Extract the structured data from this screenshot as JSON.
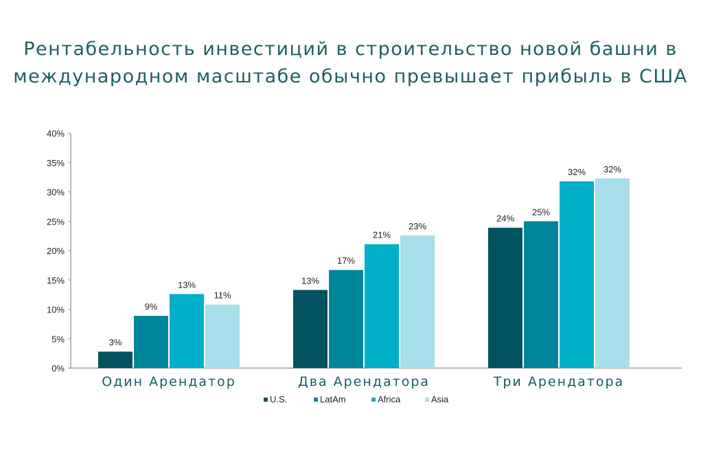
{
  "chart_data": {
    "type": "bar",
    "title": "Рентабельность инвестиций в строительство новой башни в международном масштабе обычно превышает прибыль в США",
    "title_lines": [
      "Рентабельность инвестиций в строительство новой башни в",
      "международном масштабе обычно превышает прибыль в США"
    ],
    "categories": [
      "Один Арендатор",
      "Два Арендатора",
      "Три Арендатора"
    ],
    "series": [
      {
        "name": "U.S.",
        "color": "#02535f",
        "values": [
          2.8,
          13.3,
          23.9
        ],
        "labels": [
          "3%",
          "13%",
          "24%"
        ]
      },
      {
        "name": "LatAm",
        "color": "#00869c",
        "values": [
          8.9,
          16.7,
          25.0
        ],
        "labels": [
          "9%",
          "17%",
          "25%"
        ]
      },
      {
        "name": "Africa",
        "color": "#00afc8",
        "values": [
          12.6,
          21.1,
          31.8
        ],
        "labels": [
          "13%",
          "21%",
          "32%"
        ]
      },
      {
        "name": "Asia",
        "color": "#a6dfe9",
        "values": [
          10.8,
          22.6,
          32.3
        ],
        "labels": [
          "11%",
          "23%",
          "32%"
        ]
      }
    ],
    "ylim": [
      0,
      40
    ],
    "yticks": [
      "0%",
      "5%",
      "10%",
      "15%",
      "20%",
      "25%",
      "30%",
      "35%",
      "40%"
    ],
    "xlabel": "",
    "ylabel": "",
    "grid": false,
    "legend_position": "bottom"
  }
}
